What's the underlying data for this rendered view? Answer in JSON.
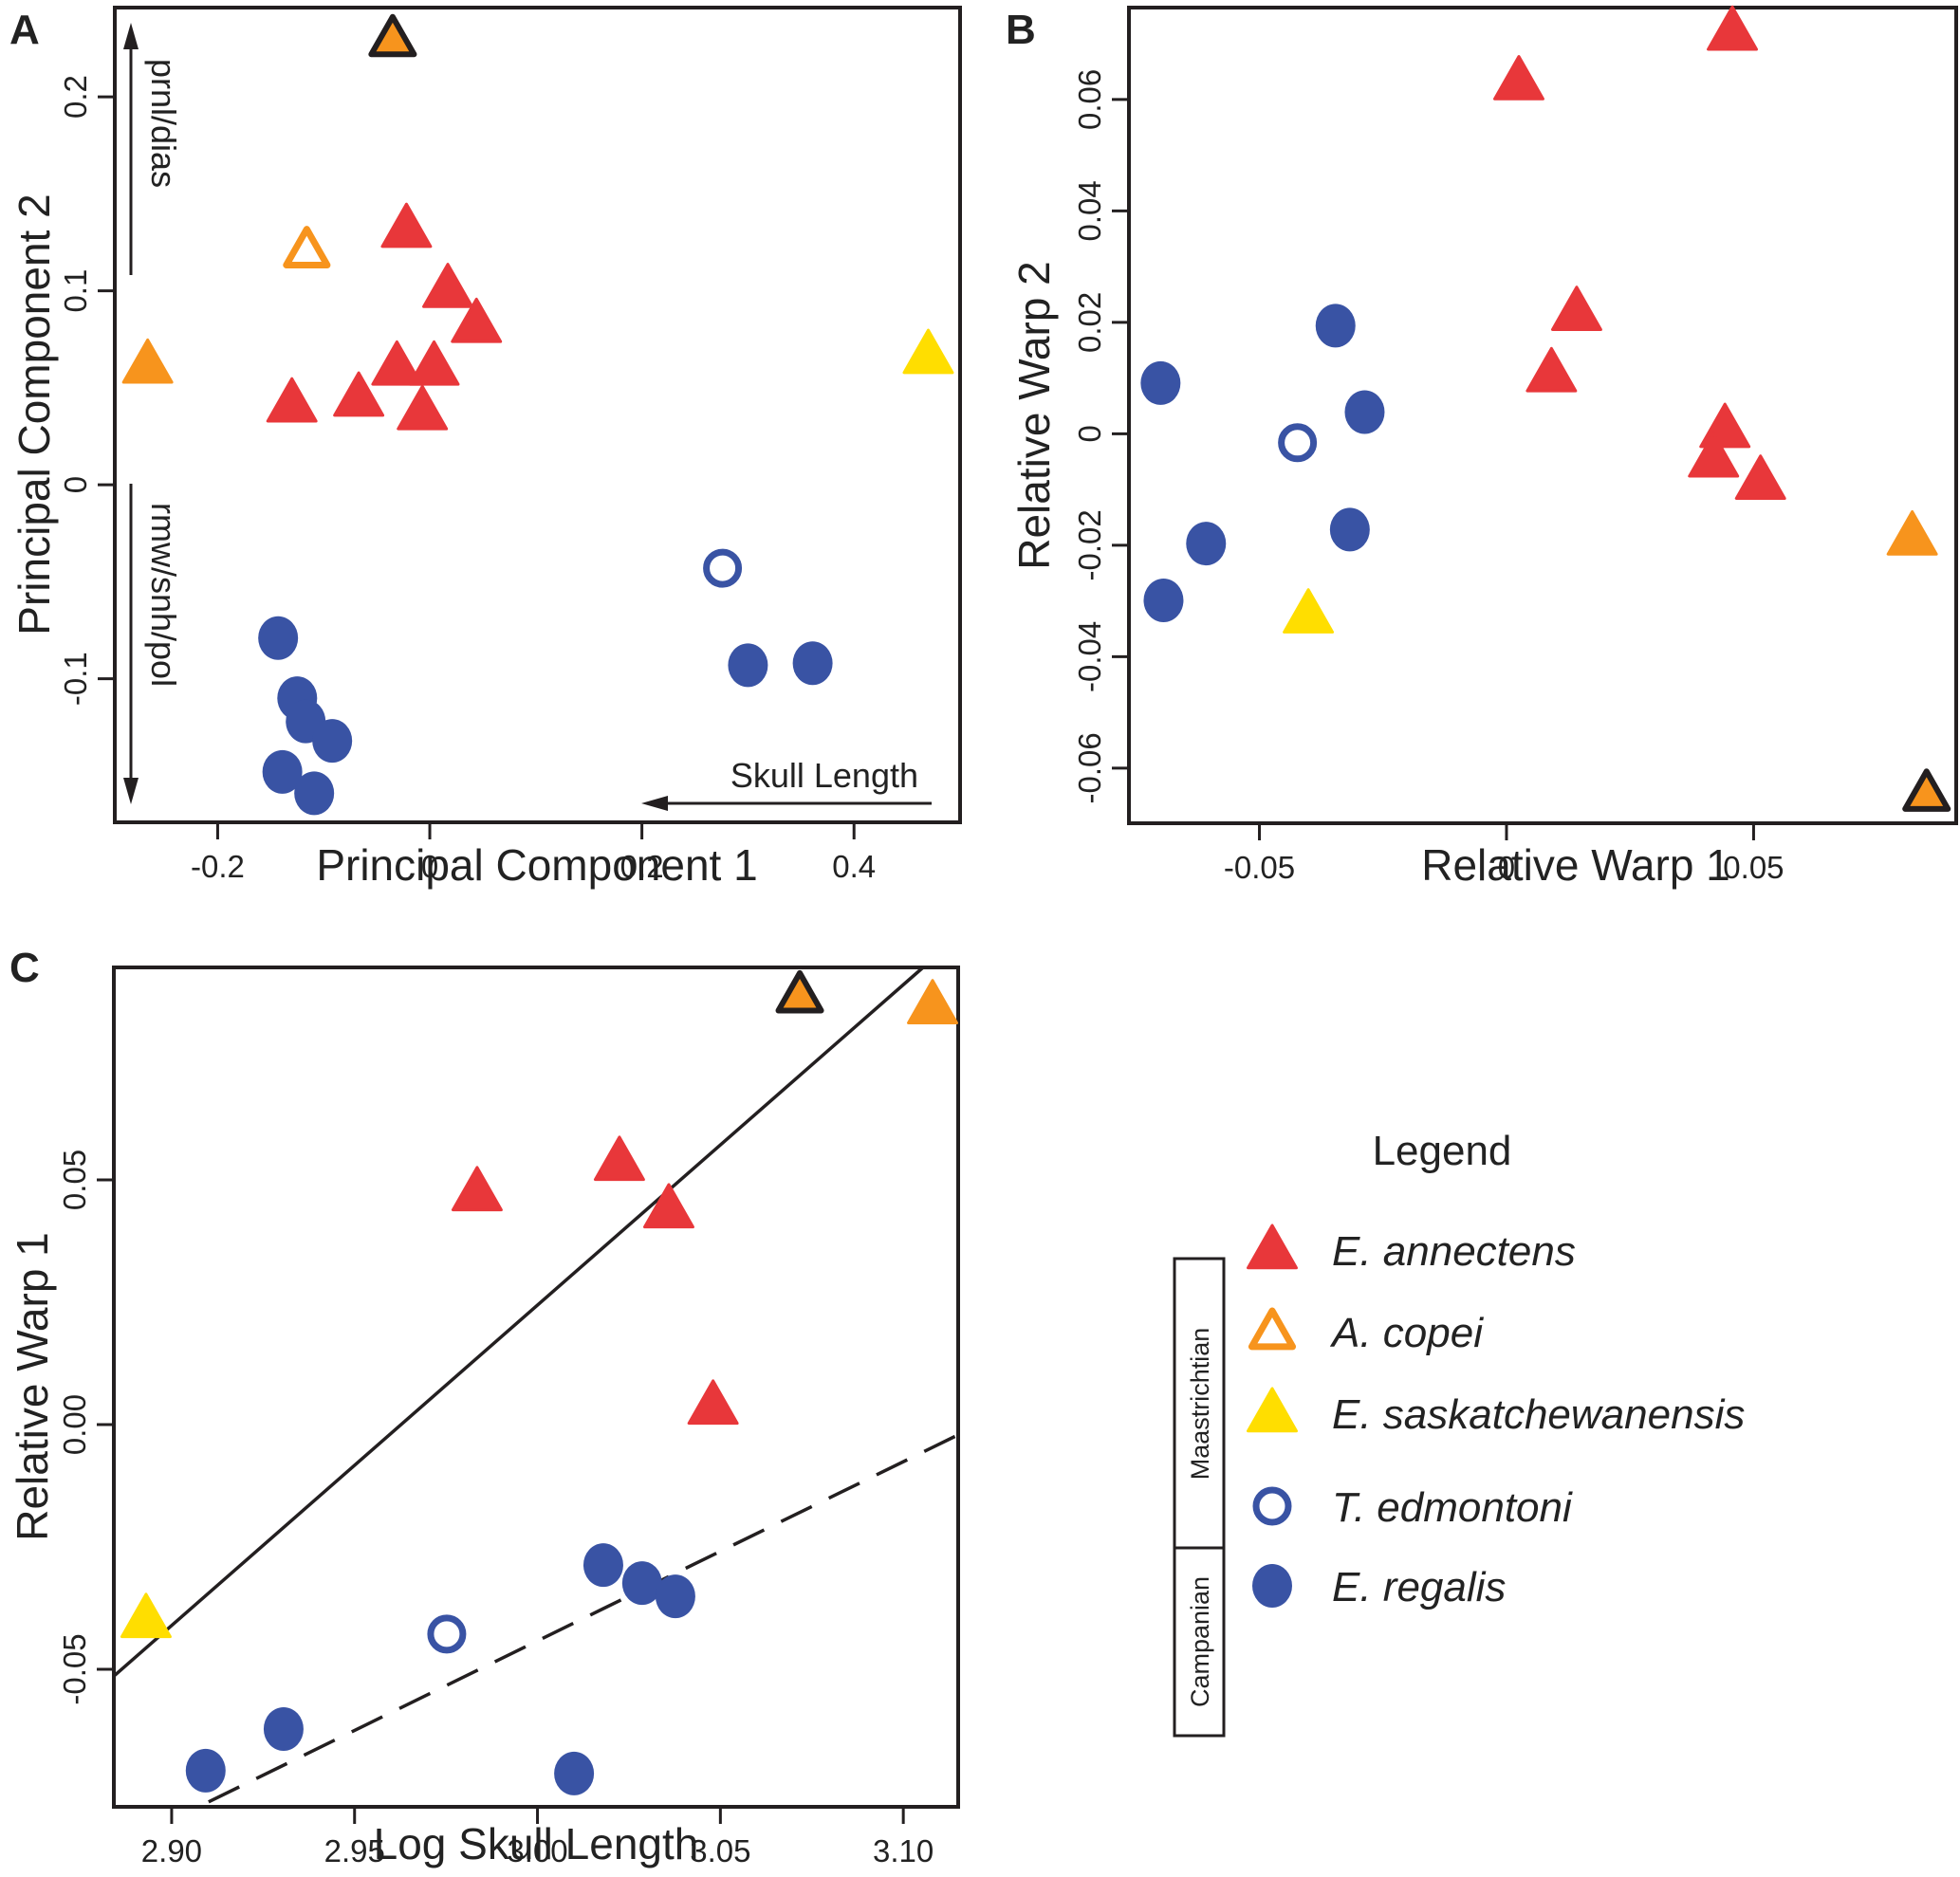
{
  "colors": {
    "E_annectens": "#E8373A",
    "A_copei": "#F7941D",
    "E_saskatchewanensis": "#FFDE00",
    "T_edmontoni": "#3953A4",
    "E_regalis": "#3953A4",
    "outline": "#231F20"
  },
  "chart_data": [
    {
      "panel": "A",
      "type": "scatter",
      "title": "",
      "xlabel": "Principal Component 1",
      "ylabel": "Principal Component 2",
      "xlim": [
        -0.297,
        0.5
      ],
      "ylim": [
        -0.174,
        0.246
      ],
      "xticks": [
        -0.2,
        0,
        0.2,
        0.4
      ],
      "xtick_labels": [
        "-0.2",
        "0",
        "0.2",
        "0.4"
      ],
      "yticks": [
        -0.1,
        0,
        0.1,
        0.2
      ],
      "ytick_labels": [
        "-0.1",
        "0",
        "0.1",
        "0.2"
      ],
      "grid": false,
      "annotations": {
        "up_arrow_label": "prnl/dias",
        "down_arrow_label": "rmw/snh/pol",
        "left_arrow_label": "Skull Length"
      },
      "points": [
        {
          "species": "A_copei_outlined",
          "x": -0.035,
          "y": 0.23
        },
        {
          "species": "A_copei",
          "x": -0.116,
          "y": 0.121
        },
        {
          "species": "A_copei_filled",
          "x": -0.266,
          "y": 0.062
        },
        {
          "species": "E_saskatchewanensis",
          "x": 0.47,
          "y": 0.067
        },
        {
          "species": "E_annectens",
          "x": -0.022,
          "y": 0.132
        },
        {
          "species": "E_annectens",
          "x": 0.017,
          "y": 0.101
        },
        {
          "species": "E_annectens",
          "x": 0.044,
          "y": 0.083
        },
        {
          "species": "E_annectens",
          "x": -0.031,
          "y": 0.061
        },
        {
          "species": "E_annectens",
          "x": 0.004,
          "y": 0.061
        },
        {
          "species": "E_annectens",
          "x": -0.13,
          "y": 0.042
        },
        {
          "species": "E_annectens",
          "x": -0.067,
          "y": 0.045
        },
        {
          "species": "E_annectens",
          "x": -0.007,
          "y": 0.038
        },
        {
          "species": "T_edmontoni",
          "x": 0.276,
          "y": -0.043
        },
        {
          "species": "E_regalis",
          "x": 0.3,
          "y": -0.093
        },
        {
          "species": "E_regalis",
          "x": 0.361,
          "y": -0.092
        },
        {
          "species": "E_regalis",
          "x": -0.143,
          "y": -0.079
        },
        {
          "species": "E_regalis",
          "x": -0.125,
          "y": -0.11
        },
        {
          "species": "E_regalis",
          "x": -0.117,
          "y": -0.122
        },
        {
          "species": "E_regalis",
          "x": -0.092,
          "y": -0.132
        },
        {
          "species": "E_regalis",
          "x": -0.139,
          "y": -0.148
        },
        {
          "species": "E_regalis",
          "x": -0.109,
          "y": -0.159
        }
      ]
    },
    {
      "panel": "B",
      "type": "scatter",
      "title": "",
      "xlabel": "Relative Warp 1",
      "ylabel": "Relative Warp 2",
      "xlim": [
        -0.0764,
        0.091
      ],
      "ylim": [
        -0.0699,
        0.0765
      ],
      "xticks": [
        -0.05,
        0,
        0.05
      ],
      "xtick_labels": [
        "-0.05",
        "0",
        "0.05"
      ],
      "yticks": [
        -0.06,
        -0.04,
        -0.02,
        0,
        0.02,
        0.04,
        0.06
      ],
      "ytick_labels": [
        "-0.06",
        "-0.04",
        "-0.02",
        "0",
        "0.02",
        "0.04",
        "0.06"
      ],
      "grid": false,
      "points": [
        {
          "species": "E_annectens",
          "x": 0.0025,
          "y": 0.0633
        },
        {
          "species": "E_annectens",
          "x": 0.0457,
          "y": 0.0722
        },
        {
          "species": "E_annectens",
          "x": 0.0142,
          "y": 0.0219
        },
        {
          "species": "E_annectens",
          "x": 0.0091,
          "y": 0.0109
        },
        {
          "species": "E_annectens",
          "x": 0.0442,
          "y": 0.0009
        },
        {
          "species": "E_annectens",
          "x": 0.0419,
          "y": -0.0044
        },
        {
          "species": "E_annectens",
          "x": 0.0514,
          "y": -0.0084
        },
        {
          "species": "A_copei_filled",
          "x": 0.0821,
          "y": -0.0184
        },
        {
          "species": "A_copei_outlined",
          "x": 0.085,
          "y": -0.0645
        },
        {
          "species": "E_saskatchewanensis",
          "x": -0.0401,
          "y": -0.0324
        },
        {
          "species": "E_regalis",
          "x": -0.0346,
          "y": 0.0194
        },
        {
          "species": "E_regalis",
          "x": -0.07,
          "y": 0.0091
        },
        {
          "species": "E_regalis",
          "x": -0.0287,
          "y": 0.0039
        },
        {
          "species": "E_regalis",
          "x": -0.0317,
          "y": -0.0172
        },
        {
          "species": "E_regalis",
          "x": -0.0608,
          "y": -0.0197
        },
        {
          "species": "E_regalis",
          "x": -0.0694,
          "y": -0.0299
        },
        {
          "species": "T_edmontoni",
          "x": -0.0423,
          "y": -0.0016
        }
      ]
    },
    {
      "panel": "C",
      "type": "scatter",
      "title": "",
      "xlabel": "Log Skull Length",
      "ylabel": "Relative Warp 1",
      "xlim": [
        2.8842,
        3.115
      ],
      "ylim": [
        -0.0781,
        0.0934
      ],
      "xticks": [
        2.9,
        2.95,
        3.0,
        3.05,
        3.1
      ],
      "xtick_labels": [
        "2.90",
        "2.95",
        "3.00",
        "3.05",
        "3.10"
      ],
      "yticks": [
        -0.05,
        0.0,
        0.05
      ],
      "ytick_labels": [
        "-0.05",
        "0.00",
        "0.05"
      ],
      "grid": false,
      "lines": [
        {
          "name": "Maastrichtian fit",
          "style": "solid",
          "x": [
            2.8842,
            3.1054
          ],
          "y": [
            -0.0514,
            0.0934
          ]
        },
        {
          "name": "Campanian fit",
          "style": "dashed",
          "x": [
            2.9101,
            3.115
          ],
          "y": [
            -0.0771,
            -0.0021
          ]
        }
      ],
      "points": [
        {
          "species": "A_copei_outlined",
          "x": 3.0717,
          "y": 0.0878
        },
        {
          "species": "A_copei_filled",
          "x": 3.108,
          "y": 0.0857
        },
        {
          "species": "E_annectens",
          "x": 2.9835,
          "y": 0.0475
        },
        {
          "species": "E_annectens",
          "x": 3.0224,
          "y": 0.0537
        },
        {
          "species": "E_annectens",
          "x": 3.0359,
          "y": 0.044
        },
        {
          "species": "E_annectens",
          "x": 3.048,
          "y": 0.0039
        },
        {
          "species": "E_saskatchewanensis",
          "x": 2.893,
          "y": -0.0397
        },
        {
          "species": "T_edmontoni",
          "x": 2.9752,
          "y": -0.0428
        },
        {
          "species": "E_regalis",
          "x": 3.018,
          "y": -0.0287
        },
        {
          "species": "E_regalis",
          "x": 3.0286,
          "y": -0.0324
        },
        {
          "species": "E_regalis",
          "x": 3.0377,
          "y": -0.0351
        },
        {
          "species": "E_regalis",
          "x": 2.9306,
          "y": -0.0622
        },
        {
          "species": "E_regalis",
          "x": 2.9093,
          "y": -0.0707
        },
        {
          "species": "E_regalis",
          "x": 3.01,
          "y": -0.0713
        }
      ]
    }
  ],
  "panels": {
    "A": {
      "letter": "A"
    },
    "B": {
      "letter": "B"
    },
    "C": {
      "letter": "C"
    }
  },
  "legend": {
    "title": "Legend",
    "periods": [
      {
        "label": "Maastrichtian"
      },
      {
        "label": "Campanian"
      }
    ],
    "entries": [
      {
        "label": "E. annectens",
        "marker": "triangle-filled",
        "species": "E_annectens"
      },
      {
        "label": "A. copei",
        "marker": "triangle-open",
        "species": "A_copei"
      },
      {
        "label": "E. saskatchewanensis",
        "marker": "triangle-filled",
        "species": "E_saskatchewanensis"
      },
      {
        "label": "T. edmontoni",
        "marker": "circle-open",
        "species": "T_edmontoni"
      },
      {
        "label": "E. regalis",
        "marker": "circle-filled",
        "species": "E_regalis"
      }
    ]
  }
}
